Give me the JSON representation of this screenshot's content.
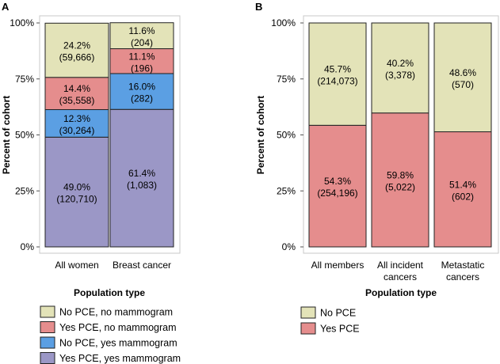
{
  "chart_data": [
    {
      "panel": "A",
      "type": "stacked-bar",
      "xlabel": "Population type",
      "ylabel": "Percent of cohort",
      "ylim": [
        0,
        100
      ],
      "yticks": [
        "0%",
        "25%",
        "50%",
        "75%",
        "100%"
      ],
      "grid": false,
      "legend_position": "bottom",
      "categories": [
        "All women",
        "Breast cancer"
      ],
      "series": [
        {
          "name": "Yes PCE, yes mammogram",
          "color": "#9b97c6",
          "values": [
            49.0,
            61.4
          ],
          "labels": [
            "49.0%",
            "61.4%"
          ],
          "counts": [
            "(120,710)",
            "(1,083)"
          ]
        },
        {
          "name": "No PCE, yes mammogram",
          "color": "#5b9fe3",
          "values": [
            12.3,
            16.0
          ],
          "labels": [
            "12.3%",
            "16.0%"
          ],
          "counts": [
            "(30,264)",
            "(282)"
          ]
        },
        {
          "name": "Yes PCE, no mammogram",
          "color": "#e58d8d",
          "values": [
            14.4,
            11.1
          ],
          "labels": [
            "14.4%",
            "11.1%"
          ],
          "counts": [
            "(35,558)",
            "(196)"
          ]
        },
        {
          "name": "No PCE, no mammogram",
          "color": "#e3e3b8",
          "values": [
            24.2,
            11.6
          ],
          "labels": [
            "24.2%",
            "11.6%"
          ],
          "counts": [
            "(59,666)",
            "(204)"
          ]
        }
      ],
      "legend_order": [
        "No PCE, no mammogram",
        "Yes PCE, no mammogram",
        "No PCE, yes mammogram",
        "Yes PCE, yes mammogram"
      ]
    },
    {
      "panel": "B",
      "type": "stacked-bar",
      "xlabel": "Population type",
      "ylabel": "Percent of cohort",
      "ylim": [
        0,
        100
      ],
      "yticks": [
        "0%",
        "25%",
        "50%",
        "75%",
        "100%"
      ],
      "grid": false,
      "legend_position": "bottom",
      "categories": [
        "All members",
        "All incident cancers",
        "Metastatic cancers"
      ],
      "category_lines": [
        [
          "All members"
        ],
        [
          "All incident",
          "cancers"
        ],
        [
          "Metastatic",
          "cancers"
        ]
      ],
      "series": [
        {
          "name": "Yes PCE",
          "color": "#e58d8d",
          "values": [
            54.3,
            59.8,
            51.4
          ],
          "labels": [
            "54.3%",
            "59.8%",
            "51.4%"
          ],
          "counts": [
            "(254,196)",
            "(5,022)",
            "(602)"
          ]
        },
        {
          "name": "No PCE",
          "color": "#e3e3b8",
          "values": [
            45.7,
            40.2,
            48.6
          ],
          "labels": [
            "45.7%",
            "40.2%",
            "48.6%"
          ],
          "counts": [
            "(214,073)",
            "(3,378)",
            "(570)"
          ]
        }
      ],
      "legend_order": [
        "No PCE",
        "Yes PCE"
      ]
    }
  ]
}
